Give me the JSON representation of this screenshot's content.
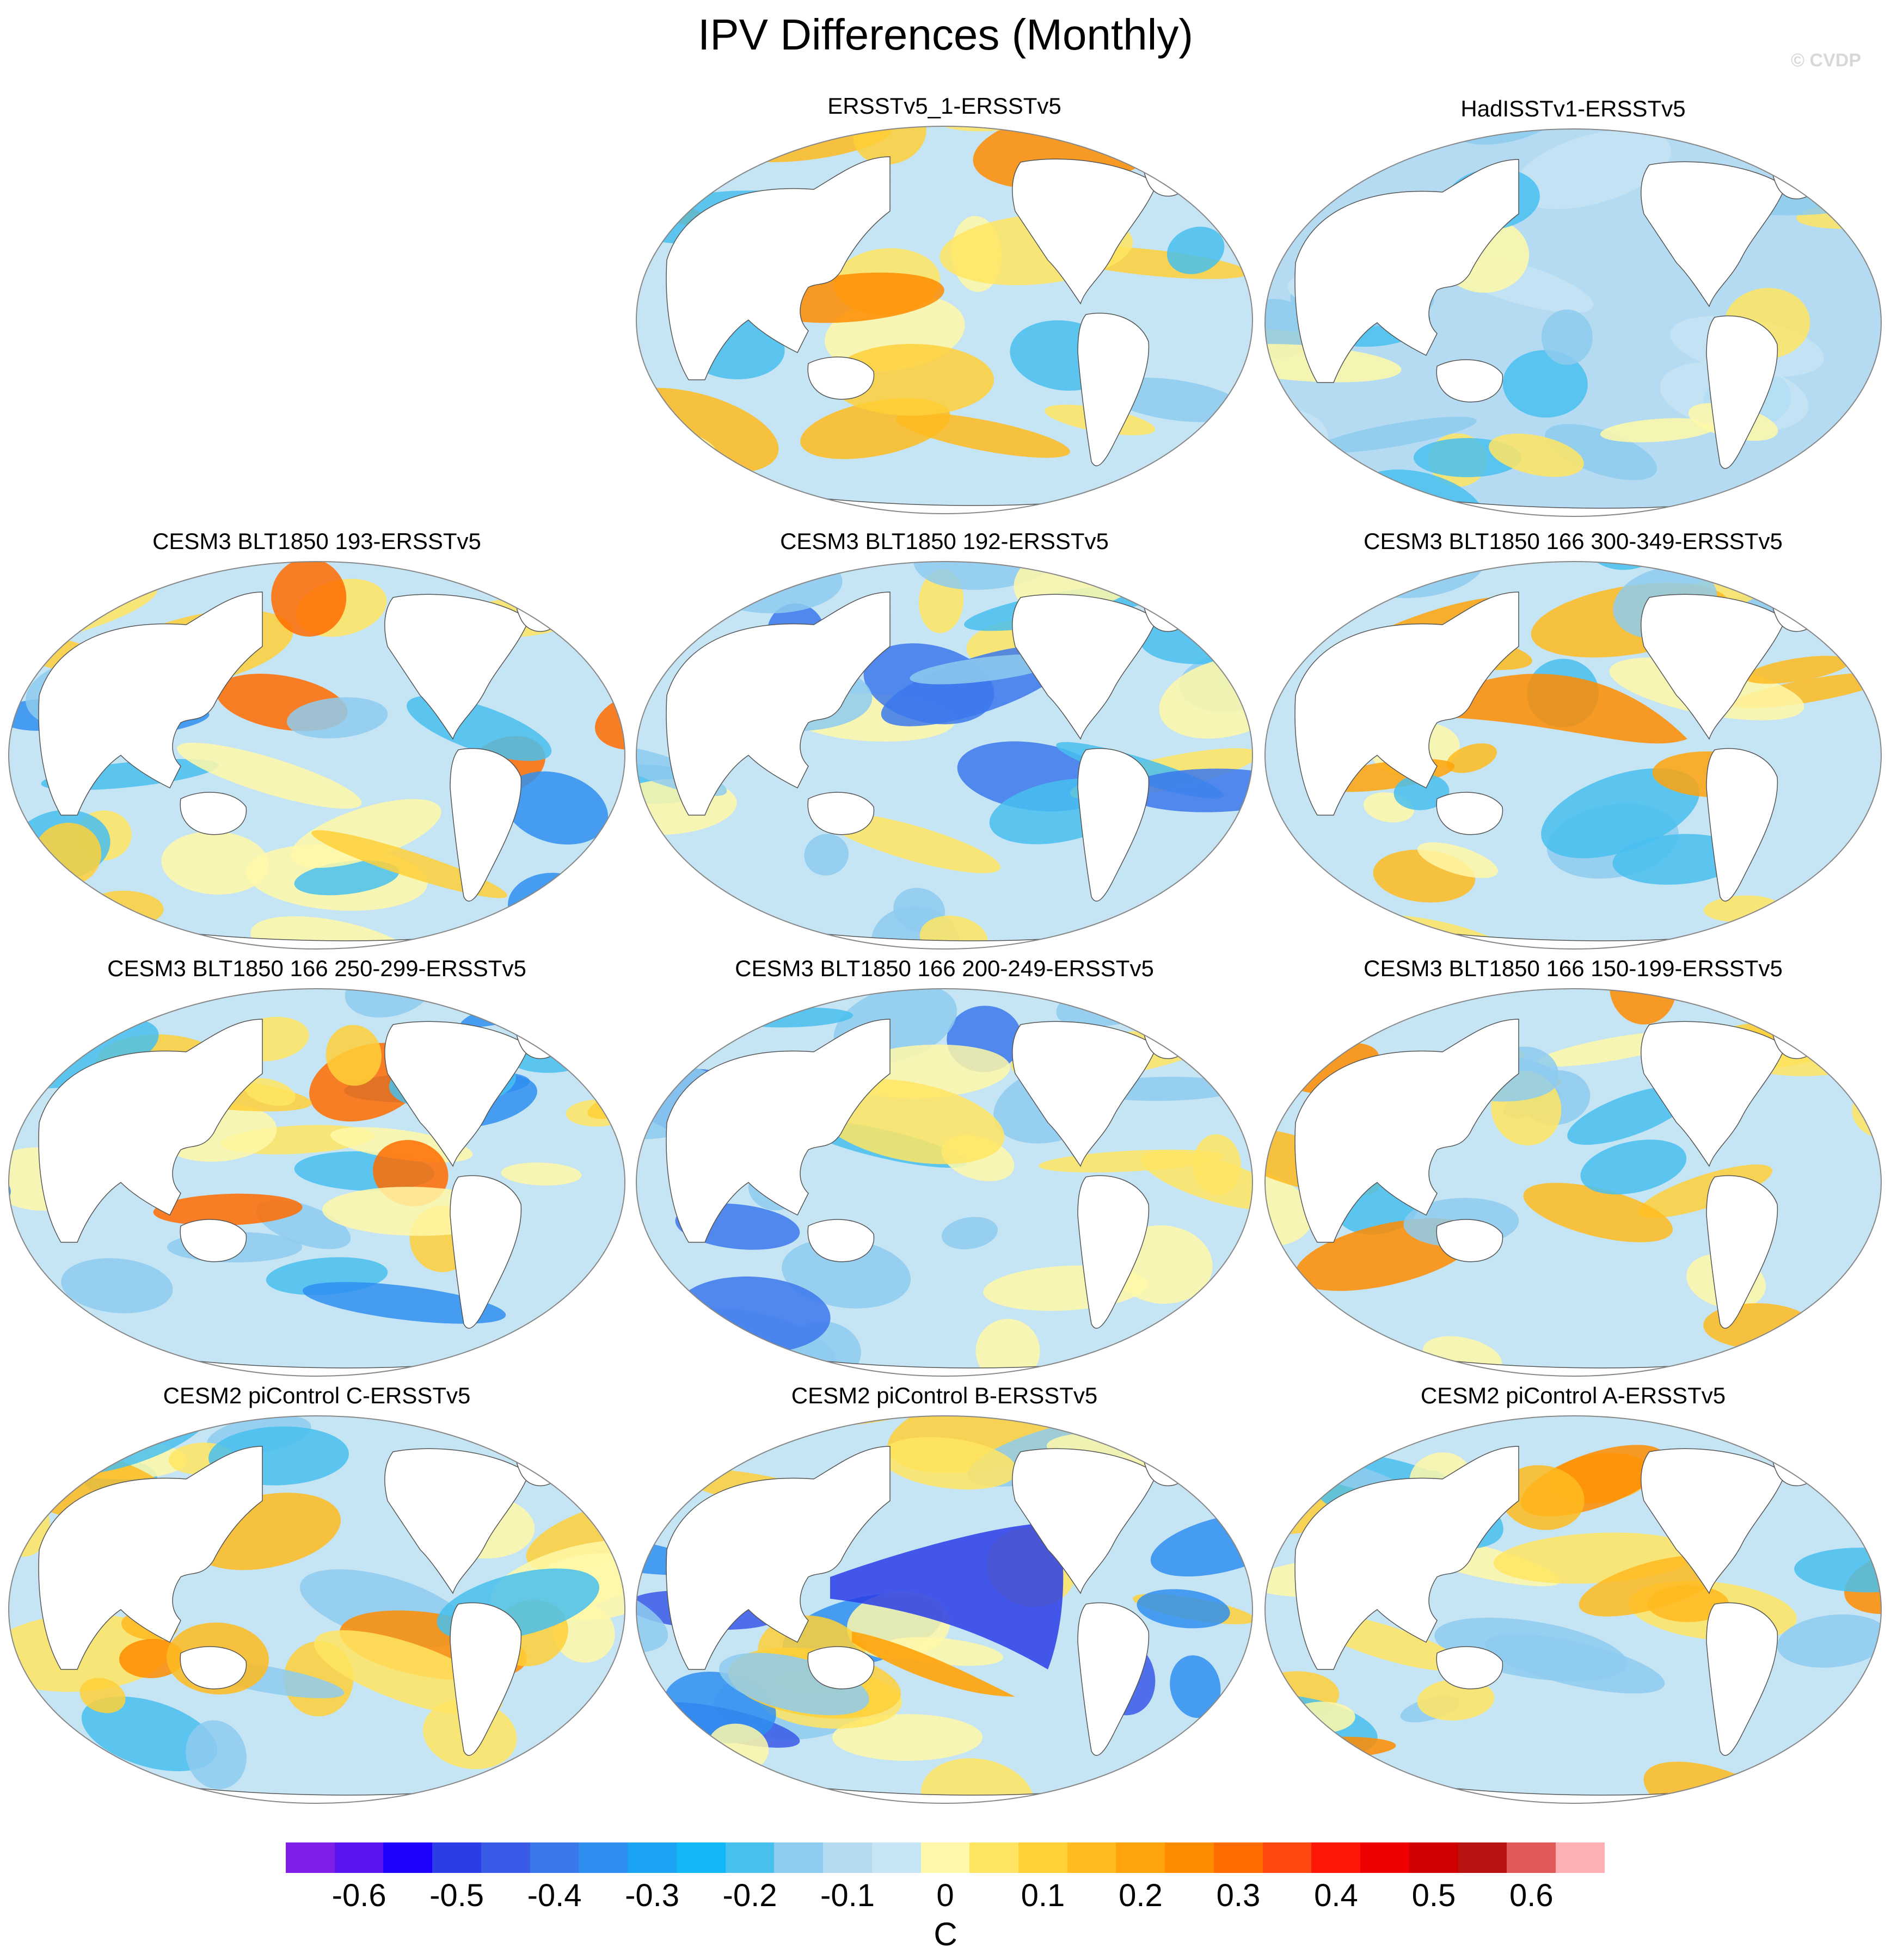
{
  "title": "IPV Differences (Monthly)",
  "watermark": "© CVDP",
  "colors": {
    "land": "#ffffff",
    "ocean_background": "#c5e2f2",
    "outline": "#888888",
    "coast": "#555555"
  },
  "panels": [
    {
      "title": "ERSSTv5_1-ERSSTv5",
      "pattern": "mixed-warm"
    },
    {
      "title": "HadISSTv1-ERSSTv5",
      "pattern": "mostly-cool"
    },
    {
      "title": "CESM3 BLT1850 193-ERSSTv5",
      "pattern": "mixed"
    },
    {
      "title": "CESM3 BLT1850 192-ERSSTv5",
      "pattern": "mixed-cool"
    },
    {
      "title": "CESM3 BLT1850 166 300-349-ERSSTv5",
      "pattern": "strong-warm-pacific"
    },
    {
      "title": "CESM3 BLT1850 166 250-299-ERSSTv5",
      "pattern": "mixed"
    },
    {
      "title": "CESM3 BLT1850 166 200-249-ERSSTv5",
      "pattern": "mixed-cool"
    },
    {
      "title": "CESM3 BLT1850 166 150-199-ERSSTv5",
      "pattern": "mixed-warm"
    },
    {
      "title": "CESM2 piControl C-ERSSTv5",
      "pattern": "mixed-warm"
    },
    {
      "title": "CESM2 piControl B-ERSSTv5",
      "pattern": "strong-cool-pacific"
    },
    {
      "title": "CESM2 piControl A-ERSSTv5",
      "pattern": "mixed-warm"
    }
  ],
  "colorbar": {
    "units": "C",
    "colors": [
      "#7f1ee6",
      "#5a14f0",
      "#1e00ff",
      "#2a3de6",
      "#3a5ae8",
      "#3b78ec",
      "#2f8ff0",
      "#1aa3f3",
      "#12b8f5",
      "#48c0ee",
      "#8ecbee",
      "#b4dbf2",
      "#c5e4f4",
      "#fff8a8",
      "#ffe562",
      "#ffd038",
      "#ffbb20",
      "#ffa30a",
      "#ff8c00",
      "#ff6c00",
      "#ff4810",
      "#ff1808",
      "#ee0000",
      "#d00000",
      "#b81414",
      "#e05a5a",
      "#ffb0b4"
    ],
    "ticks": [
      {
        "label": "-0.6",
        "value": -0.6
      },
      {
        "label": "-0.5",
        "value": -0.5
      },
      {
        "label": "-0.4",
        "value": -0.4
      },
      {
        "label": "-0.3",
        "value": -0.3
      },
      {
        "label": "-0.2",
        "value": -0.2
      },
      {
        "label": "-0.1",
        "value": -0.1
      },
      {
        "label": "0",
        "value": 0
      },
      {
        "label": "0.1",
        "value": 0.1
      },
      {
        "label": "0.2",
        "value": 0.2
      },
      {
        "label": "0.3",
        "value": 0.3
      },
      {
        "label": "0.4",
        "value": 0.4
      },
      {
        "label": "0.5",
        "value": 0.5
      },
      {
        "label": "0.6",
        "value": 0.6
      }
    ],
    "range": [
      -0.675,
      0.675
    ]
  }
}
